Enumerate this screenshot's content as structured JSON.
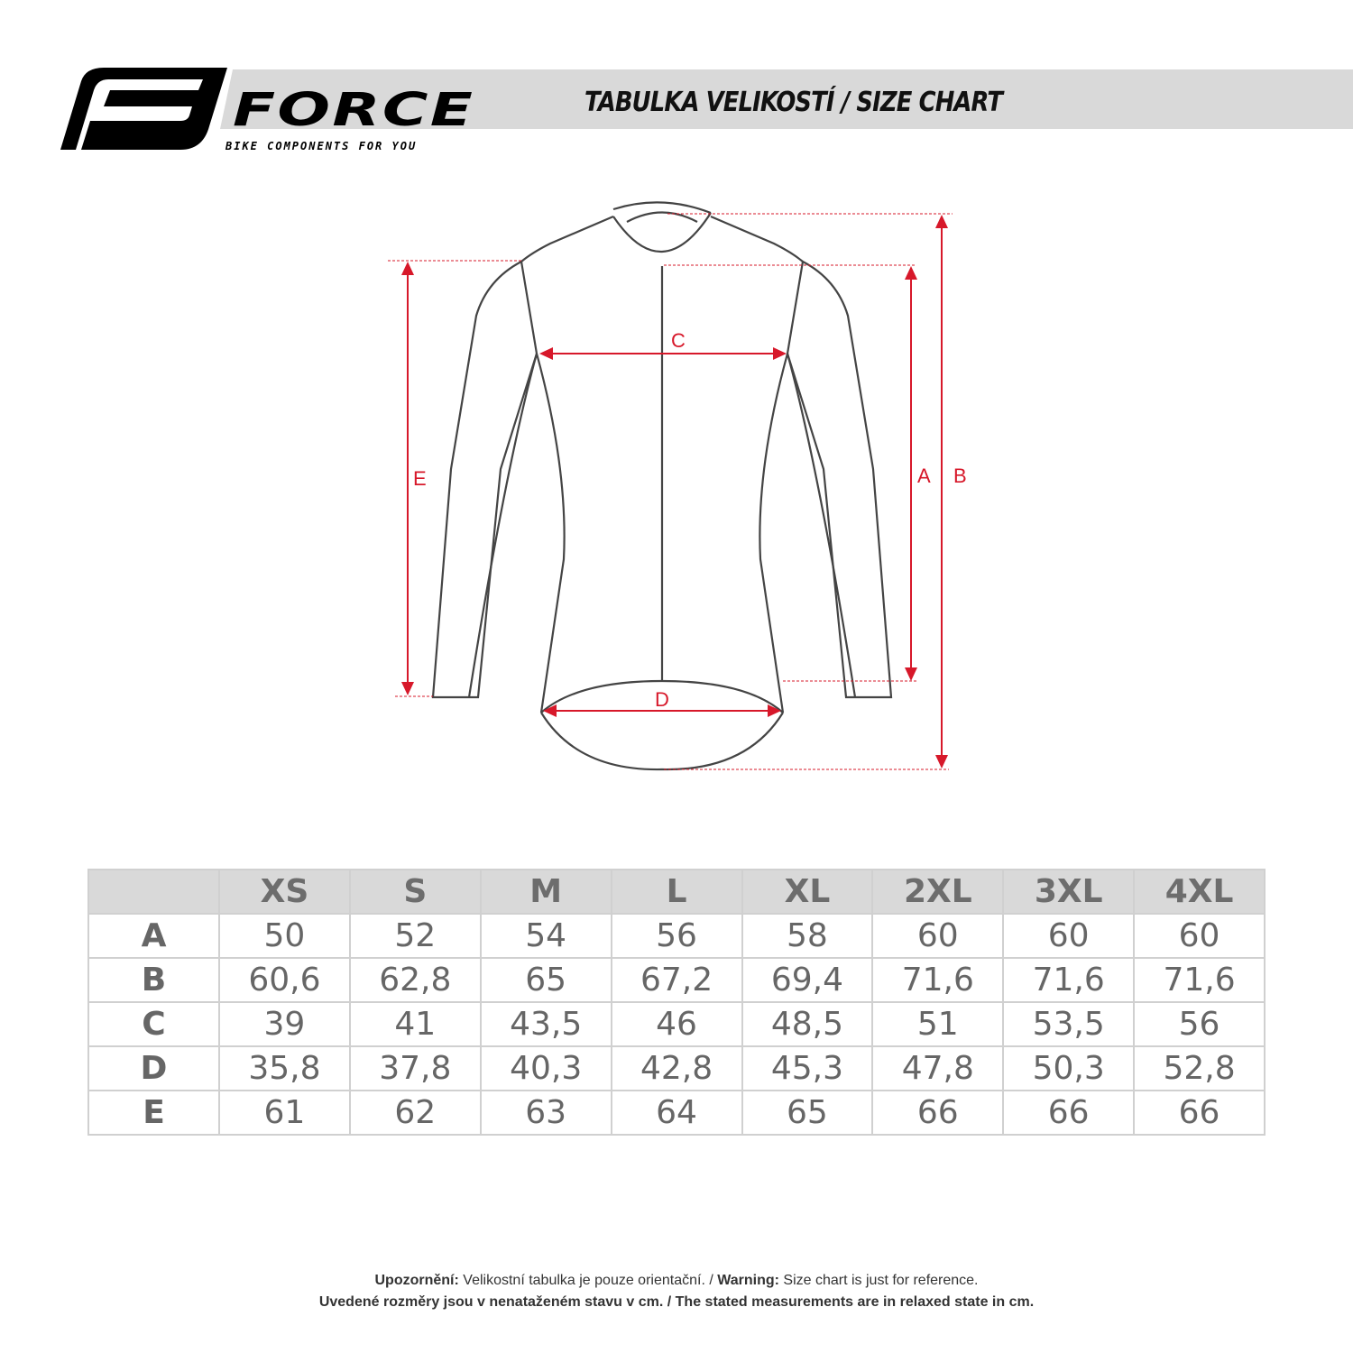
{
  "logo": {
    "brand": "FORCE",
    "tagline": "BIKE COMPONENTS FOR YOU"
  },
  "header": {
    "title": "TABULKA VELIKOSTÍ / SIZE CHART"
  },
  "diagram": {
    "labels": {
      "a": "A",
      "b": "B",
      "c": "C",
      "d": "D",
      "e": "E"
    },
    "accent_color": "#d7182a"
  },
  "table": {
    "headers": [
      "",
      "XS",
      "S",
      "M",
      "L",
      "XL",
      "2XL",
      "3XL",
      "4XL"
    ],
    "rows": [
      {
        "label": "A",
        "values": [
          "50",
          "52",
          "54",
          "56",
          "58",
          "60",
          "60",
          "60"
        ]
      },
      {
        "label": "B",
        "values": [
          "60,6",
          "62,8",
          "65",
          "67,2",
          "69,4",
          "71,6",
          "71,6",
          "71,6"
        ]
      },
      {
        "label": "C",
        "values": [
          "39",
          "41",
          "43,5",
          "46",
          "48,5",
          "51",
          "53,5",
          "56"
        ]
      },
      {
        "label": "D",
        "values": [
          "35,8",
          "37,8",
          "40,3",
          "42,8",
          "45,3",
          "47,8",
          "50,3",
          "52,8"
        ]
      },
      {
        "label": "E",
        "values": [
          "61",
          "62",
          "63",
          "64",
          "65",
          "66",
          "66",
          "66"
        ]
      }
    ]
  },
  "footer": {
    "line1_bold": "Upozornění:",
    "line1_text": " Velikostní tabulka je pouze orientační. / ",
    "line1_bold2": "Warning:",
    "line1_text2": " Size chart is just for reference.",
    "line2": "Uvedené rozměry jsou v nenataženém stavu v cm. / The stated measurements are in relaxed state in cm."
  }
}
